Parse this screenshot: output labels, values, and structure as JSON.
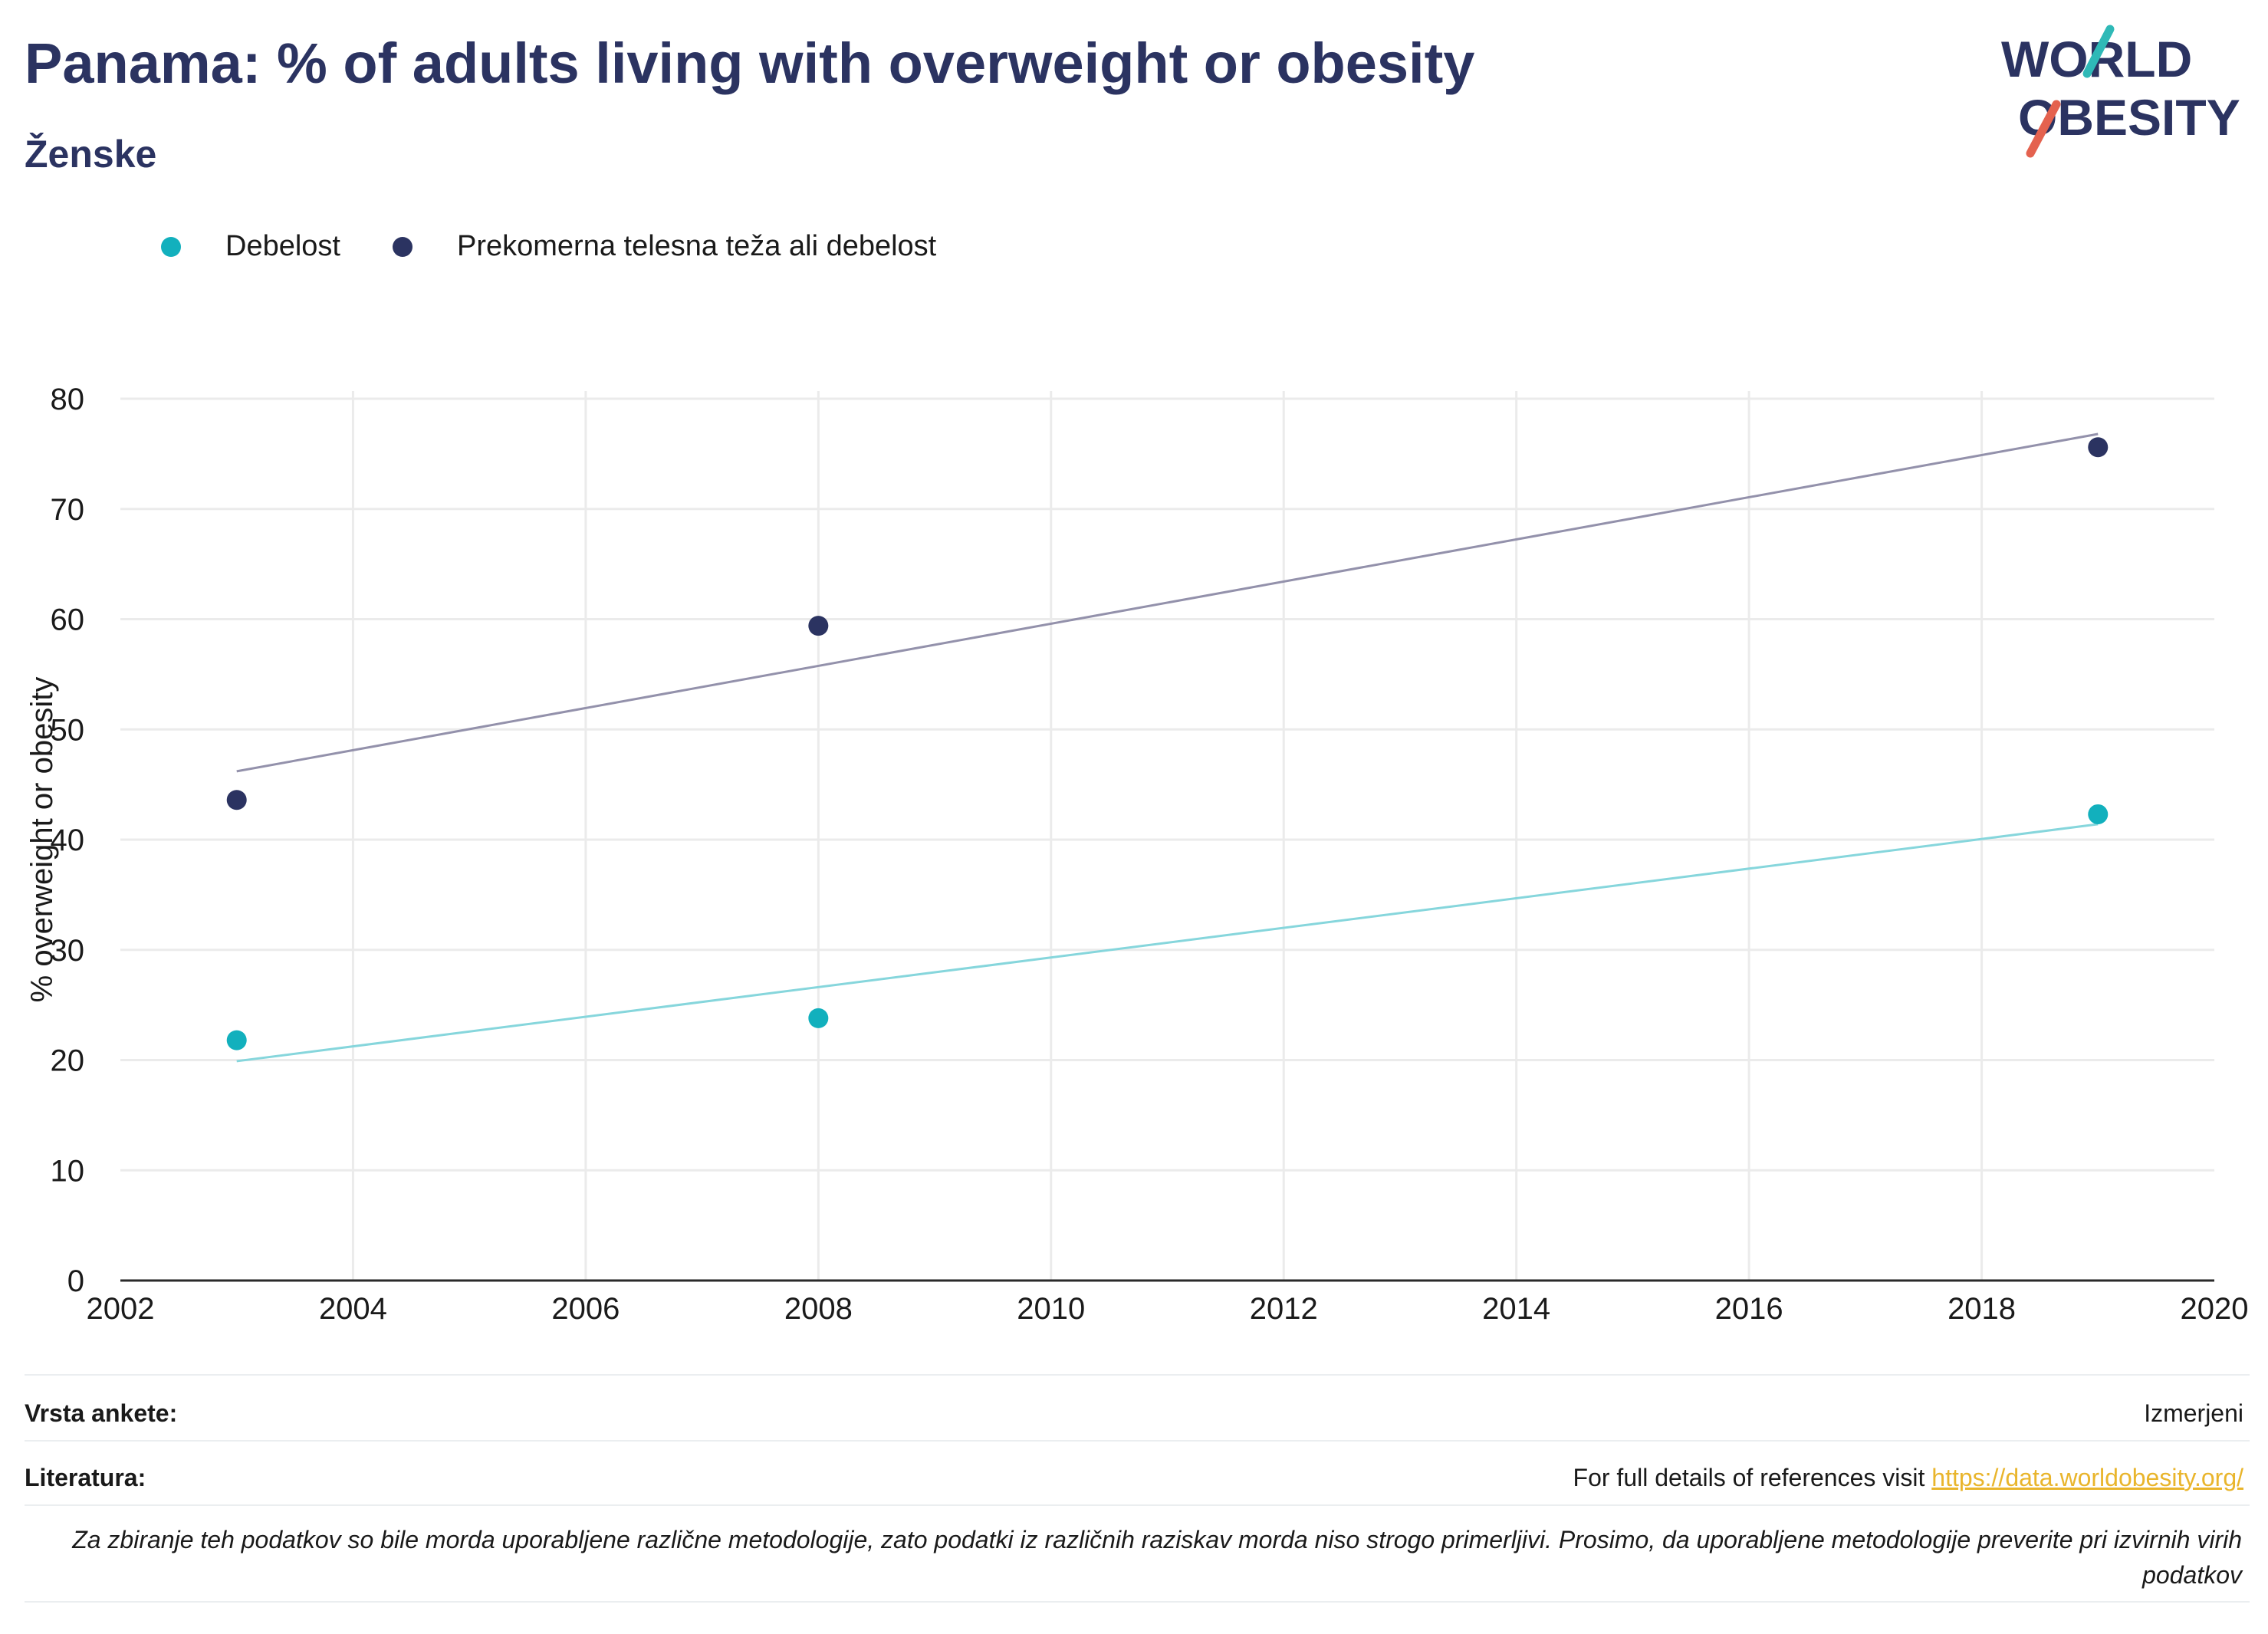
{
  "header": {
    "title": "Panama: % of adults living with overweight or obesity",
    "subtitle": "Ženske"
  },
  "logo": {
    "line1": "WORLD",
    "line2": "OBESITY"
  },
  "colors": {
    "obesity": "#12b0bd",
    "overweight": "#2b3361",
    "obesity_trend": "#86d6dc",
    "overweight_trend": "#9391ab",
    "link": "#e9b52c"
  },
  "chart_data": {
    "type": "scatter",
    "title": "Panama: % of adults living with overweight or obesity",
    "subtitle": "Ženske",
    "xlabel": "",
    "ylabel": "% overweight or obesity",
    "xlim": [
      2002,
      2020
    ],
    "ylim": [
      0,
      80
    ],
    "x_ticks": [
      2002,
      2004,
      2006,
      2008,
      2010,
      2012,
      2014,
      2016,
      2018,
      2020
    ],
    "y_ticks": [
      0,
      10,
      20,
      30,
      40,
      50,
      60,
      70,
      80
    ],
    "grid": true,
    "legend": "top-left",
    "series": [
      {
        "name": "Debelost",
        "color": "#12b0bd",
        "points": [
          {
            "x": 2003,
            "y": 21.8
          },
          {
            "x": 2008,
            "y": 23.8
          },
          {
            "x": 2019,
            "y": 42.3
          }
        ],
        "trend": [
          {
            "x": 2003,
            "y": 19.9
          },
          {
            "x": 2019,
            "y": 41.4
          }
        ]
      },
      {
        "name": "Prekomerna telesna teža ali debelost",
        "color": "#2b3361",
        "points": [
          {
            "x": 2003,
            "y": 43.6
          },
          {
            "x": 2008,
            "y": 59.4
          },
          {
            "x": 2019,
            "y": 75.6
          }
        ],
        "trend": [
          {
            "x": 2003,
            "y": 46.2
          },
          {
            "x": 2019,
            "y": 76.8
          }
        ]
      }
    ]
  },
  "footer": {
    "survey_label": "Vrsta ankete:",
    "survey_value": "Izmerjeni",
    "refs_label": "Literatura:",
    "refs_text": "For full details of references visit ",
    "refs_link": "https://data.worldobesity.org/",
    "note": "Za zbiranje teh podatkov so bile morda uporabljene različne metodologije, zato podatki iz različnih raziskav morda niso strogo primerljivi. Prosimo, da uporabljene metodologije preverite pri izvirnih virih podatkov"
  }
}
